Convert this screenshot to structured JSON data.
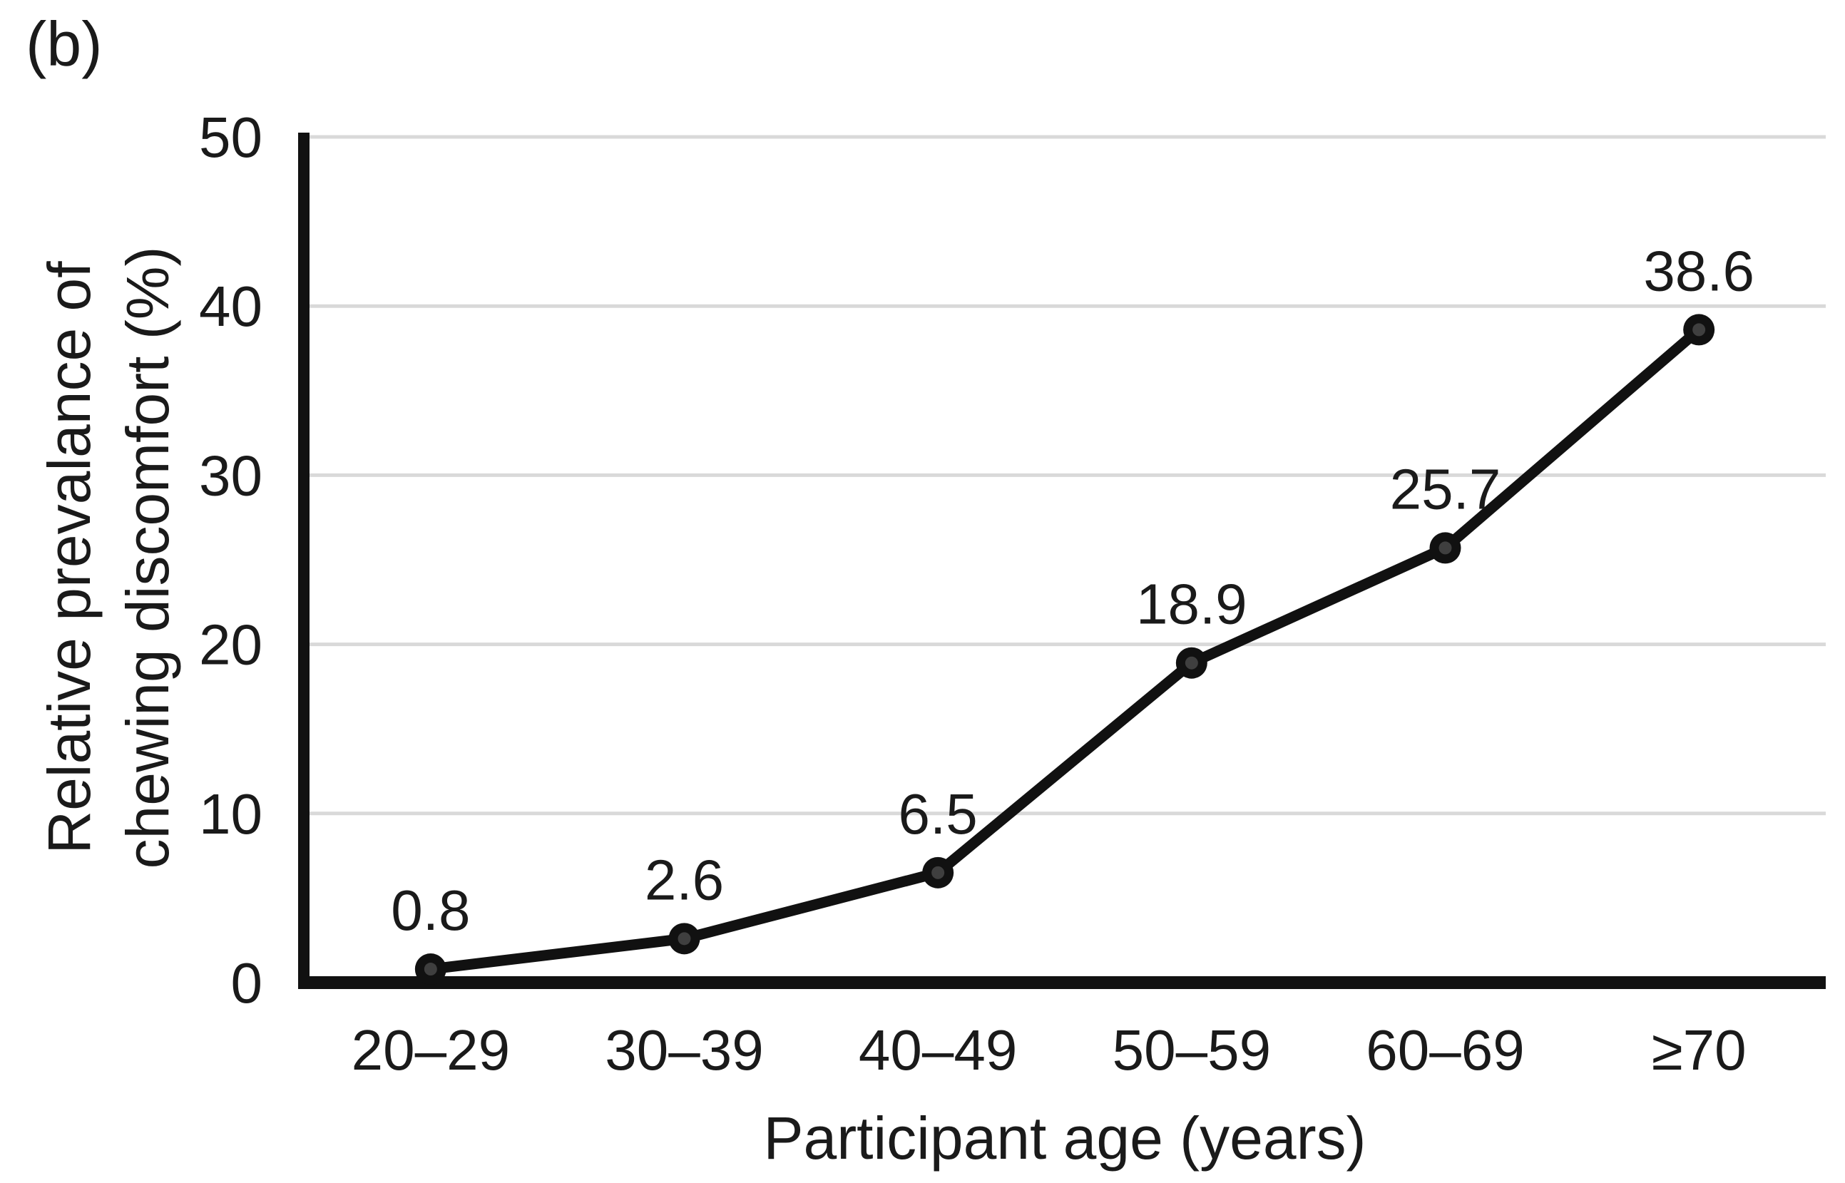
{
  "figure": {
    "panel_label": "(b)",
    "background": "#ffffff"
  },
  "chart_data": {
    "type": "line",
    "title": "",
    "categories": [
      "20–29",
      "30–39",
      "40–49",
      "50–59",
      "60–69",
      "≥70"
    ],
    "values": [
      0.8,
      2.6,
      6.5,
      18.9,
      25.7,
      38.6
    ],
    "data_labels": [
      "0.8",
      "2.6",
      "6.5",
      "18.9",
      "25.7",
      "38.6"
    ],
    "xlabel": "Participant age (years)",
    "ylabel": "Relative prevalance of chewing discomfort (%)",
    "ylabel_lines": [
      "Relative prevalance of",
      "chewing discomfort (%)"
    ],
    "ylim": [
      0,
      50
    ],
    "yticks": [
      0,
      10,
      20,
      30,
      40,
      50
    ],
    "grid": "horizontal",
    "legend": "none",
    "marker": "circle",
    "colors": {
      "line": "#111111",
      "marker_fill": "#111111",
      "marker_center": "#3f3f3f",
      "gridline": "#d9d9d9",
      "axis": "#111111",
      "text": "#1a1a1a"
    }
  }
}
